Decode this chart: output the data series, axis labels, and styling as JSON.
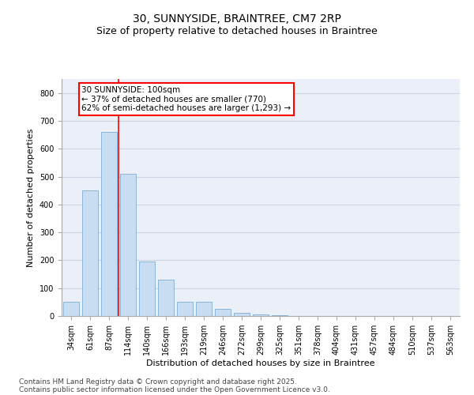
{
  "title": "30, SUNNYSIDE, BRAINTREE, CM7 2RP",
  "subtitle": "Size of property relative to detached houses in Braintree",
  "xlabel": "Distribution of detached houses by size in Braintree",
  "ylabel": "Number of detached properties",
  "categories": [
    "34sqm",
    "61sqm",
    "87sqm",
    "114sqm",
    "140sqm",
    "166sqm",
    "193sqm",
    "219sqm",
    "246sqm",
    "272sqm",
    "299sqm",
    "325sqm",
    "351sqm",
    "378sqm",
    "404sqm",
    "431sqm",
    "457sqm",
    "484sqm",
    "510sqm",
    "537sqm",
    "563sqm"
  ],
  "values": [
    50,
    450,
    660,
    510,
    195,
    130,
    50,
    50,
    25,
    10,
    5,
    2,
    1,
    0,
    0,
    0,
    0,
    0,
    0,
    0,
    0
  ],
  "bar_color": "#c9ddf2",
  "bar_edge_color": "#8ab4d8",
  "vline_index": 2,
  "vline_color": "red",
  "annotation_text": "30 SUNNYSIDE: 100sqm\n← 37% of detached houses are smaller (770)\n62% of semi-detached houses are larger (1,293) →",
  "annotation_box_color": "red",
  "ylim": [
    0,
    850
  ],
  "yticks": [
    0,
    100,
    200,
    300,
    400,
    500,
    600,
    700,
    800
  ],
  "grid_color": "#ccd5e5",
  "background_color": "#eaeff8",
  "footer_line1": "Contains HM Land Registry data © Crown copyright and database right 2025.",
  "footer_line2": "Contains public sector information licensed under the Open Government Licence v3.0.",
  "title_fontsize": 10,
  "subtitle_fontsize": 9,
  "axis_label_fontsize": 8,
  "tick_fontsize": 7,
  "annotation_fontsize": 7.5,
  "footer_fontsize": 6.5
}
